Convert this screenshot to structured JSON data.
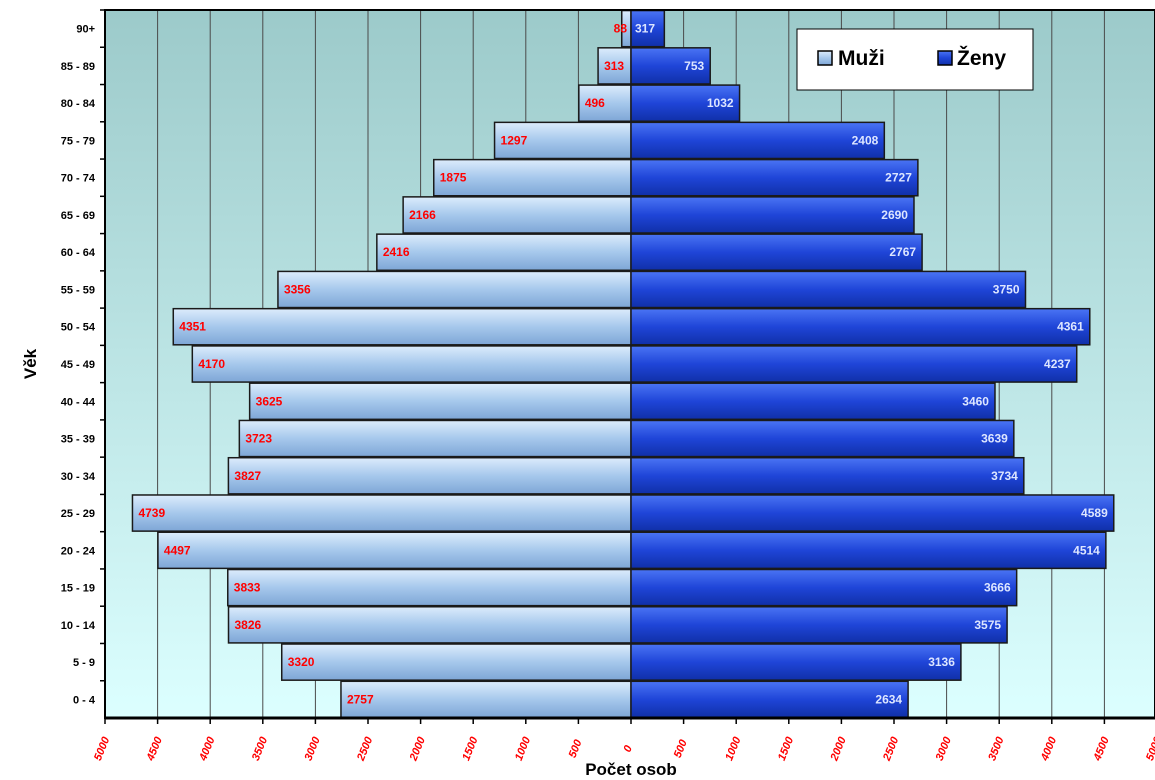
{
  "chart_data": {
    "type": "bar",
    "orientation": "horizontal-population-pyramid",
    "title": "",
    "xlabel": "Počet osob",
    "ylabel": "Věk",
    "xlim": [
      -5000,
      5000
    ],
    "x_ticks": [
      "5000",
      "4500",
      "4000",
      "3500",
      "3000",
      "2500",
      "2000",
      "1500",
      "1000",
      "500",
      "0",
      "500",
      "1000",
      "1500",
      "2000",
      "2500",
      "3000",
      "3500",
      "4000",
      "4500",
      "5000"
    ],
    "categories": [
      "90+",
      "85 - 89",
      "80 - 84",
      "75 - 79",
      "70 - 74",
      "65 - 69",
      "60 - 64",
      "55 - 59",
      "50 - 54",
      "45 - 49",
      "40 - 44",
      "35 - 39",
      "30 - 34",
      "25 - 29",
      "20 - 24",
      "15 - 19",
      "10 - 14",
      "5 - 9",
      "0 - 4"
    ],
    "series": [
      {
        "name": "Muži",
        "side": "left",
        "values": [
          88,
          313,
          496,
          1297,
          1875,
          2166,
          2416,
          3356,
          4351,
          4170,
          3625,
          3723,
          3827,
          4739,
          4497,
          3833,
          3826,
          3320,
          2757
        ]
      },
      {
        "name": "Ženy",
        "side": "right",
        "values": [
          317,
          753,
          1032,
          2408,
          2727,
          2690,
          2767,
          3750,
          4361,
          4237,
          3460,
          3639,
          3734,
          4589,
          4514,
          3666,
          3575,
          3136,
          2634
        ]
      }
    ],
    "grid": true,
    "legend_position": "top-right",
    "data_labels": true,
    "colors": {
      "male_fill": "#a6c8ec",
      "female_fill": "#1f45d8",
      "male_label": "#ff0000",
      "female_label": "#dde6ff",
      "plot_bg_top": "#9fcaca",
      "plot_bg_bottom": "#dcffff"
    }
  }
}
